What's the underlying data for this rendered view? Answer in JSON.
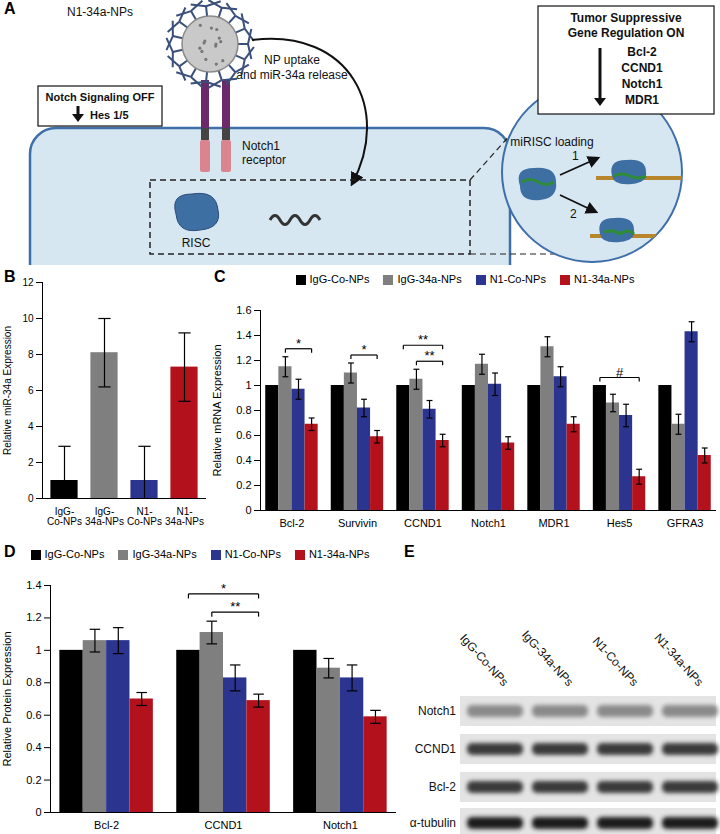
{
  "diagram": {
    "panel_label": "A",
    "nanoparticle_label": "N1-34a-NPs",
    "notch_box": {
      "title": "Notch Signaling OFF",
      "detail": "Hes 1/5"
    },
    "uptake_label_lines": [
      "NP uptake",
      "and miR-34a release"
    ],
    "receptor_label_lines": [
      "Notch1",
      "receptor"
    ],
    "risc_label": "RISC",
    "inset": {
      "label": "miRISC loading",
      "steps": [
        "1",
        "2"
      ]
    },
    "gene_box": {
      "title_lines": [
        "Tumor Suppressive",
        "Gene Regulation ON"
      ],
      "genes": [
        "Bcl-2",
        "CCND1",
        "Notch1",
        "MDR1"
      ]
    }
  },
  "chart_data": [
    {
      "panel_label": "B",
      "type": "bar",
      "y_label": "Relative miR-34a Expression",
      "categories": [
        "IgG-\nCo-NPs",
        "IgG-\n34a-NPs",
        "N1-\nCo-NPs",
        "N1-\n34a-NPs"
      ],
      "values": [
        1.0,
        8.1,
        1.0,
        7.3
      ],
      "errors": [
        1.9,
        1.9,
        1.9,
        1.9
      ],
      "colors": [
        "#000000",
        "#7f7f7f",
        "#2b3590",
        "#b3121c"
      ],
      "ylim": [
        0,
        12
      ],
      "yticks": [
        0,
        2,
        4,
        6,
        8,
        10,
        12
      ]
    },
    {
      "panel_label": "C",
      "type": "bar",
      "y_label": "Relative mRNA Expression",
      "categories": [
        "Bcl-2",
        "Survivin",
        "CCND1",
        "Notch1",
        "MDR1",
        "Hes5",
        "GFRA3"
      ],
      "series": [
        {
          "name": "IgG-Co-NPs",
          "color": "#000000",
          "values": [
            1,
            1,
            1,
            1,
            1,
            1,
            1
          ]
        },
        {
          "name": "IgG-34a-NPs",
          "color": "#7f7f7f",
          "values": [
            1.15,
            1.1,
            1.05,
            1.17,
            1.31,
            0.86,
            0.69
          ],
          "errors": [
            0.08,
            0.08,
            0.08,
            0.08,
            0.08,
            0.07,
            0.08
          ]
        },
        {
          "name": "N1-Co-NPs",
          "color": "#2b3590",
          "values": [
            0.97,
            0.82,
            0.81,
            1.01,
            1.07,
            0.76,
            1.43
          ],
          "errors": [
            0.08,
            0.07,
            0.07,
            0.09,
            0.08,
            0.09,
            0.08
          ]
        },
        {
          "name": "N1-34a-NPs",
          "color": "#b3121c",
          "values": [
            0.69,
            0.59,
            0.56,
            0.54,
            0.69,
            0.27,
            0.44
          ],
          "errors": [
            0.05,
            0.05,
            0.05,
            0.05,
            0.06,
            0.06,
            0.06
          ]
        }
      ],
      "significance": [
        {
          "category": "Bcl-2",
          "from": "IgG-34a-NPs",
          "to": "N1-34a-NPs",
          "label": "*"
        },
        {
          "category": "Survivin",
          "from": "IgG-34a-NPs",
          "to": "N1-34a-NPs",
          "label": "*"
        },
        {
          "category": "CCND1",
          "from": "IgG-34a-NPs",
          "to": "N1-34a-NPs",
          "label": "**"
        },
        {
          "category": "CCND1",
          "from": "IgG-Co-NPs",
          "to": "N1-34a-NPs",
          "label": "**"
        },
        {
          "category": "Hes5",
          "from": "IgG-Co-NPs",
          "to": "N1-34a-NPs",
          "label": "#"
        }
      ],
      "legend": "top",
      "ylim": [
        0,
        1.6
      ],
      "yticks": [
        0,
        0.2,
        0.4,
        0.6,
        0.8,
        1,
        1.2,
        1.4,
        1.6
      ]
    },
    {
      "panel_label": "D",
      "type": "bar",
      "y_label": "Relative Protein Expression",
      "categories": [
        "Bcl-2",
        "CCND1",
        "Notch1"
      ],
      "series": [
        {
          "name": "IgG-Co-NPs",
          "color": "#000000",
          "values": [
            1,
            1,
            1
          ]
        },
        {
          "name": "IgG-34a-NPs",
          "color": "#7f7f7f",
          "values": [
            1.06,
            1.11,
            0.89
          ],
          "errors": [
            0.07,
            0.07,
            0.06
          ]
        },
        {
          "name": "N1-Co-NPs",
          "color": "#2b3590",
          "values": [
            1.06,
            0.83,
            0.83
          ],
          "errors": [
            0.08,
            0.08,
            0.08
          ]
        },
        {
          "name": "N1-34a-NPs",
          "color": "#b3121c",
          "values": [
            0.7,
            0.69,
            0.59
          ],
          "errors": [
            0.04,
            0.04,
            0.04
          ]
        }
      ],
      "significance": [
        {
          "category": "CCND1",
          "from": "IgG-34a-NPs",
          "to": "N1-34a-NPs",
          "label": "**"
        },
        {
          "category": "CCND1",
          "from": "IgG-Co-NPs",
          "to": "N1-34a-NPs",
          "label": "*"
        }
      ],
      "legend": "top",
      "ylim": [
        0,
        1.4
      ],
      "yticks": [
        0,
        0.2,
        0.4,
        0.6,
        0.8,
        1,
        1.2,
        1.4
      ]
    }
  ],
  "blot": {
    "panel_label": "E",
    "lanes": [
      "IgG-Co-NPs",
      "IgG-34a-NPs",
      "N1-Co-NPs",
      "N1-34a-NPs"
    ],
    "rows": [
      "Notch1",
      "CCND1",
      "Bcl-2",
      "α-tubulin"
    ]
  }
}
